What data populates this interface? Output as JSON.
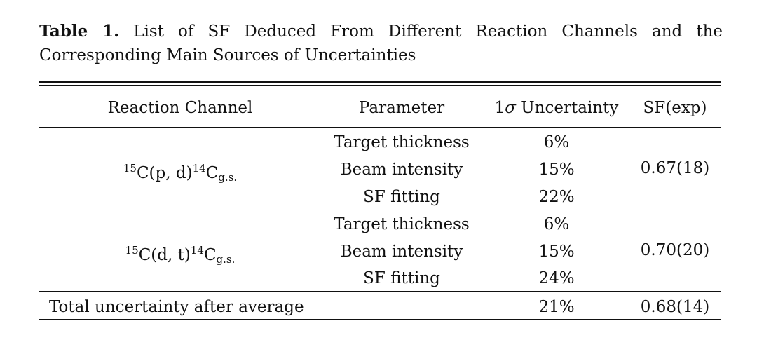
{
  "caption": {
    "label": "Table 1.",
    "text": "List of SF Deduced From Different Reaction Channels and the Corresponding Main Sources of Uncertainties"
  },
  "table": {
    "headers": {
      "channel": "Reaction Channel",
      "parameter": "Parameter",
      "uncertainty_sigma": "σ",
      "uncertainty_prefix": "1",
      "uncertainty_suffix": " Uncertainty",
      "sf": "SF(exp)"
    },
    "groups": [
      {
        "channel": {
          "pre_sup": "15",
          "base1": "C(p, d)",
          "mid_sup": "14",
          "base2": "C",
          "sub": "g.s."
        },
        "rows": [
          {
            "parameter": "Target thickness",
            "uncertainty": "6%"
          },
          {
            "parameter": "Beam intensity",
            "uncertainty": "15%"
          },
          {
            "parameter": "SF fitting",
            "uncertainty": "22%"
          }
        ],
        "sf": "0.67(18)"
      },
      {
        "channel": {
          "pre_sup": "15",
          "base1": "C(d, t)",
          "mid_sup": "14",
          "base2": "C",
          "sub": "g.s."
        },
        "rows": [
          {
            "parameter": "Target thickness",
            "uncertainty": "6%"
          },
          {
            "parameter": "Beam intensity",
            "uncertainty": "15%"
          },
          {
            "parameter": "SF fitting",
            "uncertainty": "24%"
          }
        ],
        "sf": "0.70(20)"
      }
    ],
    "total": {
      "label": "Total uncertainty after average",
      "uncertainty": "21%",
      "sf": "0.68(14)"
    }
  }
}
